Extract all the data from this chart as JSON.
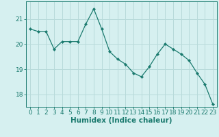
{
  "x": [
    0,
    1,
    2,
    3,
    4,
    5,
    6,
    7,
    8,
    9,
    10,
    11,
    12,
    13,
    14,
    15,
    16,
    17,
    18,
    19,
    20,
    21,
    22,
    23
  ],
  "y": [
    20.6,
    20.5,
    20.5,
    19.8,
    20.1,
    20.1,
    20.1,
    20.8,
    21.4,
    20.6,
    19.7,
    19.4,
    19.2,
    18.85,
    18.7,
    19.1,
    19.6,
    20.0,
    19.8,
    19.6,
    19.35,
    18.85,
    18.4,
    17.6
  ],
  "line_color": "#1a7a6e",
  "marker": "D",
  "marker_size": 2.2,
  "bg_color": "#d6f0f0",
  "grid_color": "#b8dada",
  "xlabel": "Humidex (Indice chaleur)",
  "xlabel_fontsize": 7.5,
  "xlim": [
    -0.5,
    23.5
  ],
  "ylim": [
    17.5,
    21.7
  ],
  "yticks": [
    18,
    19,
    20,
    21
  ],
  "xtick_labels": [
    "0",
    "1",
    "2",
    "3",
    "4",
    "5",
    "6",
    "7",
    "8",
    "9",
    "10",
    "11",
    "12",
    "13",
    "14",
    "15",
    "16",
    "17",
    "18",
    "19",
    "20",
    "21",
    "22",
    "23"
  ],
  "tick_fontsize": 6.5
}
